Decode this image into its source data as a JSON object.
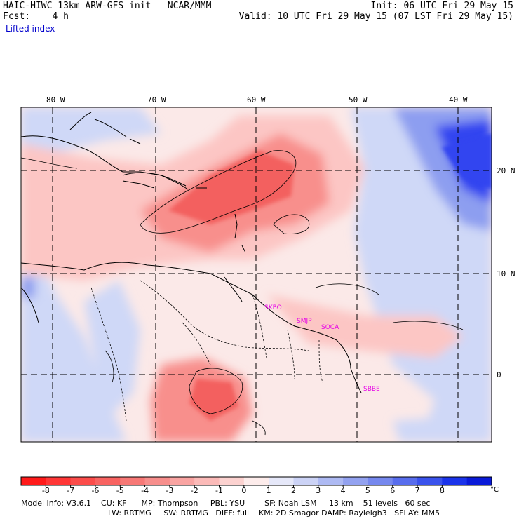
{
  "header": {
    "title": "HAIC-HIWC 13km ARW-GFS init   NCAR/MMM",
    "fcst": "Fcst:    4 h",
    "init": "Init: 06 UTC Fri 29 May 15",
    "valid": "Valid: 10 UTC Fri 29 May 15 (07 LST Fri 29 May 15)",
    "field": "Lifted index"
  },
  "map": {
    "lon_labels": [
      "80 W",
      "70 W",
      "60 W",
      "50 W",
      "40 W"
    ],
    "lat_labels": [
      "20 N",
      "10 N",
      "0"
    ],
    "stations": [
      "SKBO",
      "SMJP",
      "SOCA",
      "SBBE"
    ],
    "colors": {
      "strong_neg": "#f3615f",
      "mid_neg": "#f88f8c",
      "weak_neg": "#fcc6c4",
      "neutral": "#fbe9e8",
      "weak_pos": "#cfd8f7",
      "mid_pos": "#8d9ef0",
      "strong_pos": "#3245f0",
      "station": "#e600e6"
    }
  },
  "colorbar": {
    "labels": [
      "-8",
      "-7",
      "-6",
      "-5",
      "-4",
      "-3",
      "-2",
      "-1",
      "0",
      "1",
      "2",
      "3",
      "4",
      "5",
      "6",
      "7",
      "8"
    ],
    "unit": "°C",
    "colors": [
      "#ff1a1a",
      "#ff3636",
      "#fb4c4a",
      "#f86361",
      "#f77876",
      "#f78e8c",
      "#f9a4a2",
      "#fbbab8",
      "#fcd2d0",
      "#fdeceb",
      "#e6e8f9",
      "#ccd3f6",
      "#aebaf3",
      "#93a2f0",
      "#7688ee",
      "#586ded",
      "#3a52ec",
      "#1a33ea",
      "#0a1ad8"
    ]
  },
  "footer": {
    "line1": "Model Info: V3.6.1    CU: KF      MP: Thompson     PBL: YSU        SF: Noah LSM     13 km    51 levels   60 sec",
    "line2": "LW: RRTMG     SW: RRTMG   DIFF: full    KM: 2D Smagor DAMP: Rayleigh3   SFLAY: MM5"
  }
}
